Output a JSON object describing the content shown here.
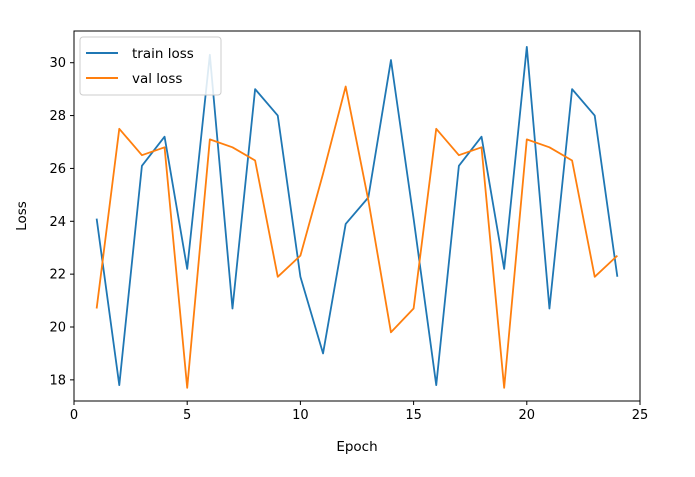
{
  "chart_data": {
    "type": "line",
    "xlabel": "Epoch",
    "ylabel": "Loss",
    "xlim": [
      0,
      25
    ],
    "ylim": [
      17.2,
      31.2
    ],
    "xticks": [
      0,
      5,
      10,
      15,
      20,
      25
    ],
    "yticks": [
      18,
      20,
      22,
      24,
      26,
      28,
      30
    ],
    "grid": false,
    "legend_position": "top-left",
    "x": [
      1,
      2,
      3,
      4,
      5,
      6,
      7,
      8,
      9,
      10,
      11,
      12,
      13,
      14,
      15,
      16,
      17,
      18,
      19,
      20,
      21,
      22,
      23,
      24
    ],
    "series": [
      {
        "name": "train loss",
        "color": "#1f77b4",
        "values": [
          24.1,
          17.8,
          26.1,
          27.2,
          22.2,
          30.3,
          20.7,
          29.0,
          28.0,
          21.9,
          19.0,
          23.9,
          24.9,
          30.1,
          24.1,
          17.8,
          26.1,
          27.2,
          22.2,
          30.6,
          20.7,
          29.0,
          28.0,
          21.9
        ]
      },
      {
        "name": "val loss",
        "color": "#ff7f0e",
        "values": [
          20.7,
          27.5,
          26.5,
          26.8,
          17.7,
          27.1,
          26.8,
          26.3,
          21.9,
          22.7,
          25.8,
          29.1,
          24.8,
          19.8,
          20.7,
          27.5,
          26.5,
          26.8,
          17.7,
          27.1,
          26.8,
          26.3,
          21.9,
          22.7
        ]
      }
    ]
  }
}
